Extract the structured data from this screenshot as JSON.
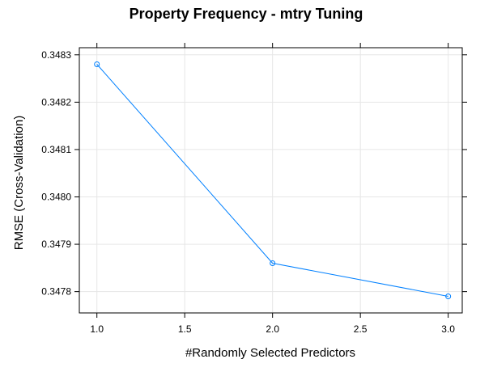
{
  "chart_data": {
    "type": "line",
    "title": "Property Frequency - mtry Tuning",
    "xlabel": "#Randomly Selected Predictors",
    "ylabel": "RMSE (Cross-Validation)",
    "x": [
      1.0,
      2.0,
      3.0
    ],
    "series": [
      {
        "values": [
          0.34828,
          0.34786,
          0.34779
        ]
      }
    ],
    "xlim": [
      0.9,
      3.08
    ],
    "ylim": [
      0.347755,
      0.348315
    ],
    "xticks": [
      1.0,
      1.5,
      2.0,
      2.5,
      3.0
    ],
    "xtick_labels": [
      "1.0",
      "1.5",
      "2.0",
      "2.5",
      "3.0"
    ],
    "yticks": [
      0.3478,
      0.3479,
      0.348,
      0.3481,
      0.3482,
      0.3483
    ],
    "ytick_labels": [
      "0.3478",
      "0.3479",
      "0.3480",
      "0.3481",
      "0.3482",
      "0.3483"
    ],
    "grid": true,
    "colors": {
      "line": "#0080ff",
      "grid": "#e6e6e6",
      "frame": "#000000"
    }
  }
}
